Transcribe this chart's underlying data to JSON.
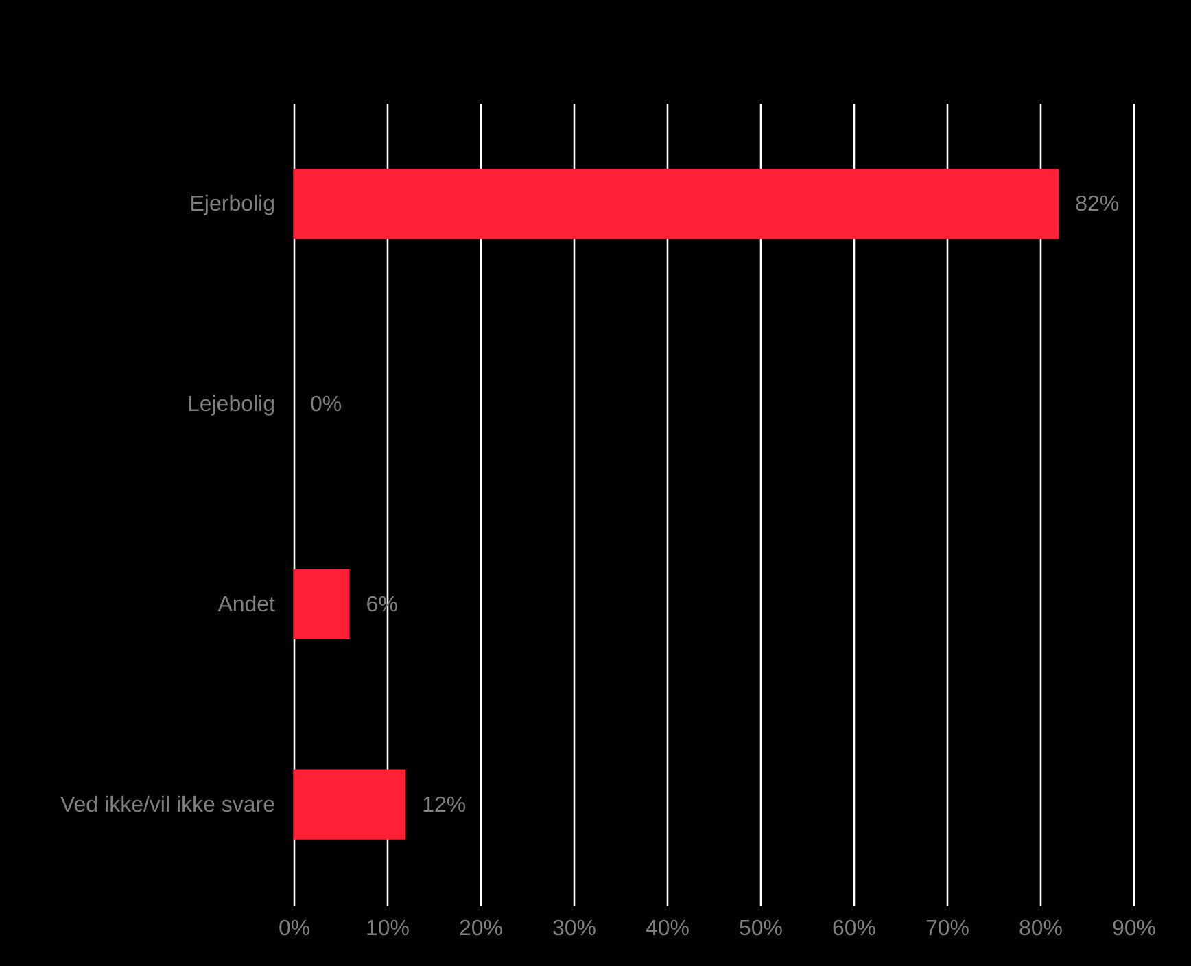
{
  "chart_data": {
    "type": "bar",
    "orientation": "horizontal",
    "categories": [
      "Ejerbolig",
      "Lejebolig",
      "Andet",
      "Ved ikke/vil ikke svare"
    ],
    "values": [
      82,
      0,
      6,
      12
    ],
    "color": "#fe2136",
    "value_labels": [
      "82%",
      "0%",
      "6%",
      "12%"
    ],
    "xlim": [
      0,
      90
    ],
    "xticks": [
      {
        "value": 0,
        "label": "0%"
      },
      {
        "value": 10,
        "label": "10%"
      },
      {
        "value": 20,
        "label": "20%"
      },
      {
        "value": 30,
        "label": "30%"
      },
      {
        "value": 40,
        "label": "40%"
      },
      {
        "value": 50,
        "label": "50%"
      },
      {
        "value": 60,
        "label": "60%"
      },
      {
        "value": 70,
        "label": "70%"
      },
      {
        "value": 80,
        "label": "80%"
      },
      {
        "value": 90,
        "label": "90%"
      }
    ],
    "grid": "x"
  }
}
